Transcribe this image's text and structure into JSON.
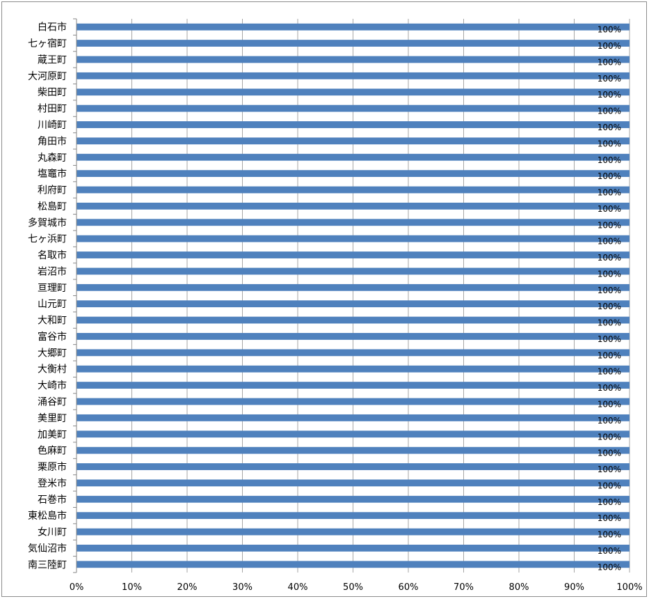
{
  "chart_data": {
    "type": "bar",
    "orientation": "horizontal",
    "stacked_percent": true,
    "categories": [
      "白石市",
      "七ヶ宿町",
      "蔵王町",
      "大河原町",
      "柴田町",
      "村田町",
      "川崎町",
      "角田市",
      "丸森町",
      "塩竈市",
      "利府町",
      "松島町",
      "多賀城市",
      "七ヶ浜町",
      "名取市",
      "岩沼市",
      "亘理町",
      "山元町",
      "大和町",
      "富谷市",
      "大郷町",
      "大衡村",
      "大崎市",
      "涌谷町",
      "美里町",
      "加美町",
      "色麻町",
      "栗原市",
      "登米市",
      "石巻市",
      "東松島市",
      "女川町",
      "気仙沼市",
      "南三陸町"
    ],
    "series": [
      {
        "values": [
          1,
          1,
          1,
          1,
          1,
          1,
          1,
          1,
          1,
          1,
          1,
          1,
          1,
          1,
          1,
          1,
          1,
          1,
          1,
          1,
          1,
          1,
          1,
          1,
          1,
          1,
          1,
          1,
          1,
          1,
          1,
          1,
          1,
          1
        ],
        "data_labels": [
          "100%",
          "100%",
          "100%",
          "100%",
          "100%",
          "100%",
          "100%",
          "100%",
          "100%",
          "100%",
          "100%",
          "100%",
          "100%",
          "100%",
          "100%",
          "100%",
          "100%",
          "100%",
          "100%",
          "100%",
          "100%",
          "100%",
          "100%",
          "100%",
          "100%",
          "100%",
          "100%",
          "100%",
          "100%",
          "100%",
          "100%",
          "100%",
          "100%",
          "100%"
        ],
        "color": "#4f81bd"
      }
    ],
    "xlim": [
      0,
      1
    ],
    "x_ticks": [
      "0%",
      "10%",
      "20%",
      "30%",
      "40%",
      "50%",
      "60%",
      "70%",
      "80%",
      "90%",
      "100%"
    ],
    "title": "",
    "xlabel": "",
    "ylabel": "",
    "grid": "vertical",
    "legend": "none",
    "colors": {
      "bar": "#4f81bd",
      "grid": "#a6a6a6",
      "axis": "#868686",
      "text": "#000000"
    }
  }
}
